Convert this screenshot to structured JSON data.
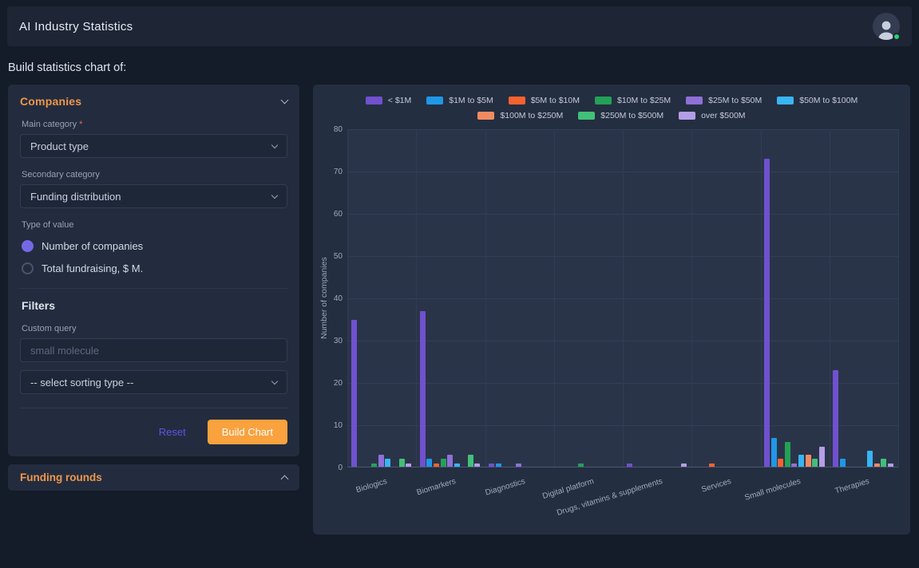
{
  "header": {
    "title": "AI Industry Statistics"
  },
  "page": {
    "subtitle": "Build statistics chart of:"
  },
  "sidebar": {
    "companies_panel": {
      "title": "Companies",
      "main_category": {
        "label": "Main category ",
        "required_mark": "*",
        "value": "Product type"
      },
      "secondary_category": {
        "label": "Secondary category",
        "value": "Funding distribution"
      },
      "type_of_value": {
        "label": "Type of value",
        "options": [
          {
            "label": "Number of companies",
            "selected": true
          },
          {
            "label": "Total fundraising, $ M.",
            "selected": false
          }
        ]
      },
      "filters": {
        "title": "Filters",
        "custom_query": {
          "label": "Custom query",
          "placeholder": "small molecule"
        },
        "sorting": {
          "value": "-- select sorting type --"
        }
      },
      "actions": {
        "reset": "Reset",
        "build": "Build Chart"
      }
    },
    "funding_panel": {
      "title": "Funding rounds"
    }
  },
  "colors": {
    "accent_orange": "#f0964a",
    "build_button": "#f9a23e",
    "reset_link": "#5e54e8",
    "radio_selected": "#7568e8",
    "status_dot": "#2ecc71"
  },
  "chart_data": {
    "type": "bar",
    "title": "",
    "xlabel": "",
    "ylabel": "Number of companies",
    "ylim": [
      0,
      80
    ],
    "yticks": [
      0,
      10,
      20,
      30,
      40,
      50,
      60,
      70,
      80
    ],
    "grid": true,
    "legend_position": "top",
    "categories": [
      "Biologics",
      "Biomarkers",
      "Diagnostics",
      "Digital platform",
      "Drugs, vitamins & supplements",
      "Services",
      "Small molecules",
      "Therapies"
    ],
    "series": [
      {
        "name": "< $1M",
        "color": "#7051ce",
        "values": [
          35,
          37,
          1,
          0,
          1,
          0,
          73,
          23
        ]
      },
      {
        "name": "$1M to $5M",
        "color": "#1f97e8",
        "values": [
          0,
          2,
          1,
          0,
          0,
          0,
          7,
          2
        ]
      },
      {
        "name": "$5M to $10M",
        "color": "#f6622e",
        "values": [
          0,
          1,
          0,
          0,
          0,
          1,
          2,
          0
        ]
      },
      {
        "name": "$10M to $25M",
        "color": "#23a156",
        "values": [
          1,
          2,
          0,
          1,
          0,
          0,
          6,
          0
        ]
      },
      {
        "name": "$25M to $50M",
        "color": "#8f70d8",
        "values": [
          3,
          3,
          1,
          0,
          0,
          0,
          1,
          0
        ]
      },
      {
        "name": "$50M to $100M",
        "color": "#38b5f2",
        "values": [
          2,
          1,
          0,
          0,
          0,
          0,
          3,
          4
        ]
      },
      {
        "name": "$100M to $250M",
        "color": "#f08b61",
        "values": [
          0,
          0,
          0,
          0,
          0,
          0,
          3,
          1
        ]
      },
      {
        "name": "$250M to $500M",
        "color": "#41c077",
        "values": [
          2,
          3,
          0,
          0,
          0,
          0,
          2,
          2
        ]
      },
      {
        "name": "over $500M",
        "color": "#b49ee6",
        "values": [
          1,
          1,
          0,
          0,
          1,
          0,
          5,
          1
        ]
      }
    ]
  }
}
